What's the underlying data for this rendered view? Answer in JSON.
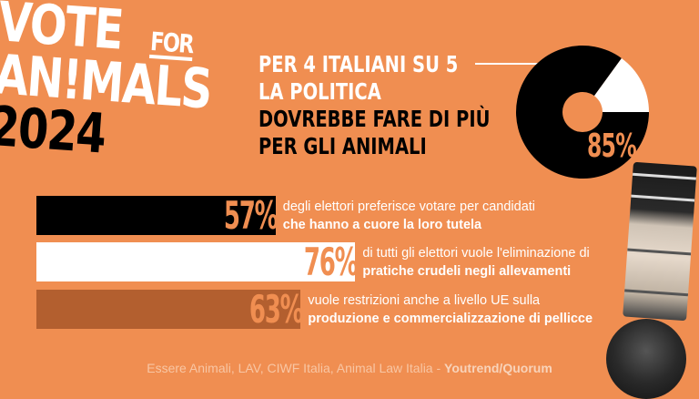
{
  "logo": {
    "line1": "VOTE",
    "for": "FOR",
    "line2": "AN!MALS",
    "year": "2024"
  },
  "headline": {
    "line1": "PER 4 ITALIANI SU 5",
    "line2": "LA POLITICA",
    "line3": "DOVREBBE FARE DI PIÙ",
    "line4": "PER GLI ANIMALI"
  },
  "colors": {
    "background": "#F08E51",
    "black": "#000000",
    "white": "#FFFFFF",
    "brown": "#B35F2F"
  },
  "chart_data": [
    {
      "type": "pie",
      "variant": "donut",
      "values": [
        85,
        15
      ],
      "colors": [
        "#000000",
        "#FFFFFF"
      ],
      "label": "85%"
    },
    {
      "type": "bar",
      "orientation": "horizontal",
      "values": [
        57,
        76,
        63
      ],
      "labels": [
        "57%",
        "76%",
        "63%"
      ],
      "colors": [
        "#000000",
        "#FFFFFF",
        "#B35F2F"
      ],
      "descriptions": [
        {
          "text": "degli elettori preferisce votare per candidati",
          "bold": "che hanno a cuore la loro tutela"
        },
        {
          "text": "di tutti gli elettori vuole l'eliminazione di",
          "bold": "pratiche crudeli negli allevamenti"
        },
        {
          "text": "vuole restrizioni anche a livello UE sulla",
          "bold": "produzione e commercializzazione di pellicce"
        }
      ]
    }
  ],
  "footer": {
    "sources": "Essere Animali, LAV, CIWF Italia, Animal Law Italia - ",
    "credit": "Youtrend/Quorum"
  }
}
